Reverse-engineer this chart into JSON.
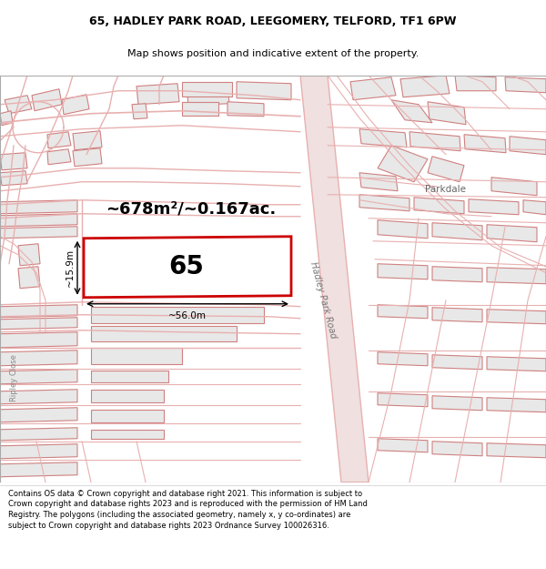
{
  "title_line1": "65, HADLEY PARK ROAD, LEEGOMERY, TELFORD, TF1 6PW",
  "title_line2": "Map shows position and indicative extent of the property.",
  "footer_text": "Contains OS data © Crown copyright and database right 2021. This information is subject to Crown copyright and database rights 2023 and is reproduced with the permission of HM Land Registry. The polygons (including the associated geometry, namely x, y co-ordinates) are subject to Crown copyright and database rights 2023 Ordnance Survey 100026316.",
  "background_color": "#ffffff",
  "map_bg_color": "#ffffff",
  "road_color": "#e8b0b0",
  "road_fill": "#f0e0e0",
  "highlight_color": "#cc0000",
  "building_fill": "#e8e8e8",
  "building_edge": "#d08080",
  "road_label": "Hadley Park Road",
  "area_label": "~678m²/~0.167ac.",
  "plot_label": "65",
  "dim_width": "~56.0m",
  "dim_height": "~15.9m",
  "parkdale_label": "Parkdale",
  "ripley_label": "Ripley Close"
}
